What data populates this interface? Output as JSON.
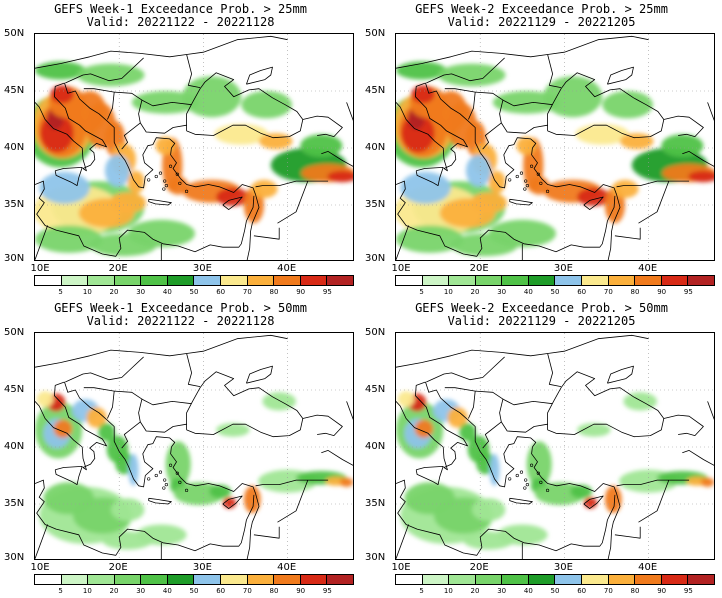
{
  "panels": [
    {
      "title": "GEFS Week-1 Exceedance Prob. > 25mm",
      "valid": "Valid: 20221122 - 20221128",
      "intensity": "high"
    },
    {
      "title": "GEFS Week-2 Exceedance Prob. > 25mm",
      "valid": "Valid: 20221129 - 20221205",
      "intensity": "high"
    },
    {
      "title": "GEFS Week-1 Exceedance Prob. > 50mm",
      "valid": "Valid: 20221122 - 20221128",
      "intensity": "low"
    },
    {
      "title": "GEFS Week-2 Exceedance Prob. > 50mm",
      "valid": "Valid: 20221129 - 20221205",
      "intensity": "low"
    }
  ],
  "lat_labels": [
    "50N",
    "45N",
    "40N",
    "35N",
    "30N"
  ],
  "lon_labels": [
    "10E",
    "20E",
    "30E",
    "40E"
  ],
  "legend": {
    "colors": [
      "#ffffff",
      "#cdf5c6",
      "#a0e695",
      "#78d46a",
      "#4fc247",
      "#1e9c28",
      "#8ec4ea",
      "#fbe98e",
      "#fbb03c",
      "#f07a1c",
      "#d82a16",
      "#b22222"
    ],
    "ticks": [
      "5",
      "10",
      "20",
      "30",
      "40",
      "50",
      "60",
      "70",
      "80",
      "90",
      "95"
    ]
  },
  "colors": {
    "land_outline": "#000000",
    "ocean": "#ffffff",
    "grid": "#9a9a9a"
  }
}
